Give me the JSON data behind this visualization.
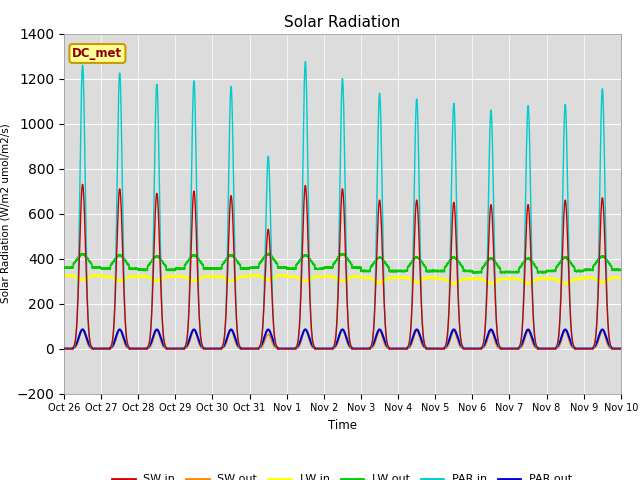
{
  "title": "Solar Radiation",
  "ylabel": "Solar Radiation (W/m2 umol/m2/s)",
  "xlabel": "Time",
  "ylim": [
    -200,
    1400
  ],
  "background_color": "#dcdcdc",
  "annotation_text": "DC_met",
  "annotation_bg": "#ffff99",
  "annotation_border": "#cc9900",
  "xtick_labels": [
    "Oct 26",
    "Oct 27",
    "Oct 28",
    "Oct 29",
    "Oct 30",
    "Oct 31",
    "Nov 1",
    "Nov 2",
    "Nov 3",
    "Nov 4",
    "Nov 5",
    "Nov 6",
    "Nov 7",
    "Nov 8",
    "Nov 9",
    "Nov 10"
  ],
  "series": {
    "SW_in": {
      "color": "#cc0000",
      "lw": 1.0
    },
    "SW_out": {
      "color": "#ff8800",
      "lw": 1.0
    },
    "LW_in": {
      "color": "#ffff00",
      "lw": 1.2
    },
    "LW_out": {
      "color": "#00cc00",
      "lw": 1.2
    },
    "PAR_in": {
      "color": "#00cccc",
      "lw": 1.0
    },
    "PAR_out": {
      "color": "#0000cc",
      "lw": 1.5
    }
  },
  "legend_labels": [
    "SW in",
    "SW out",
    "LW in",
    "LW out",
    "PAR in",
    "PAR out"
  ],
  "legend_colors": [
    "#cc0000",
    "#ff8800",
    "#ffff00",
    "#00cc00",
    "#00cccc",
    "#0000cc"
  ],
  "sw_in_peaks": [
    730,
    710,
    690,
    700,
    680,
    530,
    725,
    710,
    660,
    660,
    650,
    640,
    640,
    660,
    670
  ],
  "par_in_peaks": [
    1260,
    1225,
    1175,
    1190,
    1165,
    855,
    1275,
    1200,
    1135,
    1110,
    1090,
    1060,
    1080,
    1085,
    1155
  ],
  "lw_out_base": [
    360,
    355,
    350,
    355,
    355,
    360,
    355,
    360,
    345,
    345,
    345,
    340,
    340,
    345,
    350
  ],
  "lw_in_base": [
    325,
    320,
    320,
    320,
    320,
    325,
    320,
    320,
    315,
    315,
    310,
    310,
    310,
    310,
    315
  ]
}
